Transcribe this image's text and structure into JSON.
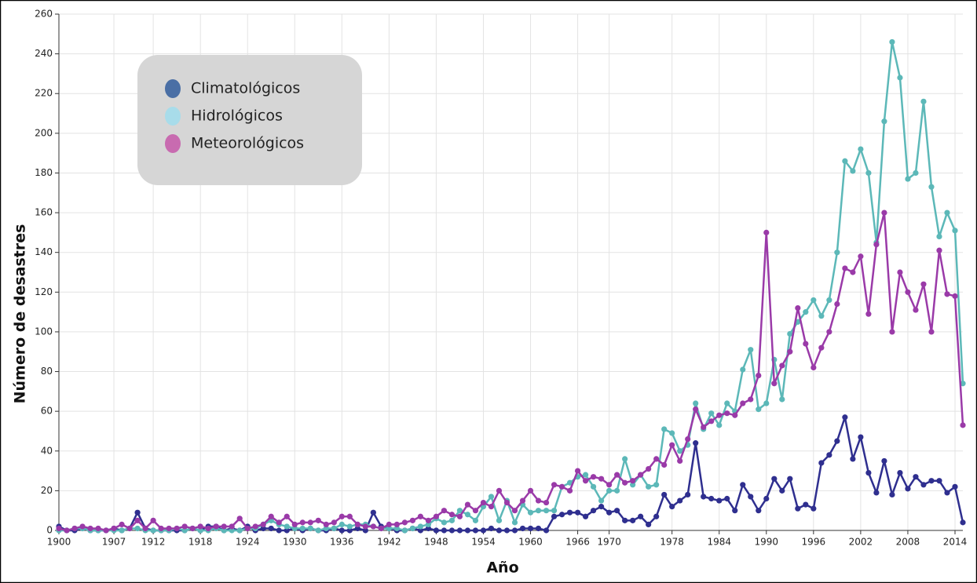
{
  "chart_data": {
    "type": "line",
    "xlabel": "Año",
    "ylabel": "Número de desastres",
    "x": [
      1900,
      1901,
      1902,
      1903,
      1904,
      1905,
      1906,
      1907,
      1908,
      1909,
      1910,
      1911,
      1912,
      1913,
      1914,
      1915,
      1916,
      1917,
      1918,
      1919,
      1920,
      1921,
      1922,
      1923,
      1924,
      1925,
      1926,
      1927,
      1928,
      1929,
      1930,
      1931,
      1932,
      1933,
      1934,
      1935,
      1936,
      1937,
      1938,
      1939,
      1940,
      1941,
      1942,
      1943,
      1944,
      1945,
      1946,
      1947,
      1948,
      1949,
      1950,
      1951,
      1952,
      1953,
      1954,
      1955,
      1956,
      1957,
      1958,
      1959,
      1960,
      1961,
      1962,
      1963,
      1964,
      1965,
      1966,
      1967,
      1968,
      1969,
      1970,
      1971,
      1972,
      1973,
      1974,
      1975,
      1976,
      1977,
      1978,
      1979,
      1980,
      1981,
      1982,
      1983,
      1984,
      1985,
      1986,
      1987,
      1988,
      1989,
      1990,
      1991,
      1992,
      1993,
      1994,
      1995,
      1996,
      1997,
      1998,
      1999,
      2000,
      2001,
      2002,
      2003,
      2004,
      2005,
      2006,
      2007,
      2008,
      2009,
      2010,
      2011,
      2012,
      2013,
      2014,
      2015
    ],
    "series": [
      {
        "name": "Climatológicos",
        "color": "#2f2f8f",
        "legend_color": "#4a6fa5",
        "values": [
          2,
          0,
          0,
          1,
          0,
          0,
          0,
          1,
          0,
          1,
          9,
          1,
          0,
          0,
          0,
          0,
          0,
          1,
          0,
          2,
          2,
          0,
          1,
          0,
          2,
          0,
          1,
          1,
          0,
          0,
          1,
          0,
          1,
          0,
          0,
          1,
          0,
          0,
          1,
          0,
          9,
          2,
          1,
          0,
          0,
          1,
          0,
          1,
          0,
          0,
          0,
          0,
          0,
          0,
          0,
          1,
          0,
          0,
          0,
          1,
          1,
          1,
          0,
          7,
          8,
          9,
          9,
          7,
          10,
          12,
          9,
          10,
          5,
          5,
          7,
          3,
          7,
          18,
          12,
          15,
          18,
          44,
          17,
          16,
          15,
          16,
          10,
          23,
          17,
          10,
          16,
          26,
          20,
          26,
          11,
          13,
          11,
          34,
          38,
          45,
          57,
          36,
          47,
          29,
          19,
          35,
          18,
          29,
          21,
          27,
          23,
          25,
          25,
          19,
          22,
          4
        ]
      },
      {
        "name": "Hidrológicos",
        "color": "#5cb8b8",
        "legend_color": "#a8dcea",
        "values": [
          0,
          0,
          1,
          1,
          0,
          0,
          0,
          0,
          0,
          1,
          1,
          0,
          0,
          0,
          0,
          1,
          0,
          1,
          0,
          0,
          1,
          0,
          0,
          0,
          1,
          1,
          3,
          5,
          3,
          2,
          1,
          1,
          1,
          0,
          1,
          1,
          3,
          2,
          3,
          3,
          2,
          1,
          1,
          1,
          0,
          1,
          2,
          3,
          6,
          4,
          5,
          10,
          8,
          5,
          12,
          17,
          5,
          15,
          4,
          13,
          9,
          10,
          10,
          10,
          22,
          24,
          27,
          28,
          22,
          15,
          20,
          20,
          36,
          23,
          28,
          22,
          23,
          51,
          49,
          40,
          43,
          64,
          51,
          59,
          53,
          64,
          60,
          81,
          91,
          61,
          64,
          86,
          66,
          99,
          105,
          110,
          116,
          108,
          116,
          140,
          186,
          181,
          192,
          180,
          145,
          206,
          246,
          228,
          177,
          180,
          216,
          173,
          148,
          160,
          151,
          74
        ]
      },
      {
        "name": "Meteorológicos",
        "color": "#9a3aa8",
        "legend_color": "#c86bb0",
        "values": [
          1,
          0,
          1,
          2,
          1,
          1,
          0,
          1,
          3,
          1,
          5,
          1,
          5,
          1,
          1,
          1,
          2,
          1,
          2,
          1,
          2,
          2,
          2,
          6,
          1,
          2,
          3,
          7,
          4,
          7,
          3,
          4,
          4,
          5,
          3,
          4,
          7,
          7,
          3,
          2,
          2,
          1,
          3,
          3,
          4,
          5,
          7,
          5,
          7,
          10,
          8,
          7,
          13,
          10,
          14,
          12,
          20,
          14,
          10,
          15,
          20,
          15,
          14,
          23,
          22,
          20,
          30,
          25,
          27,
          26,
          23,
          28,
          24,
          25,
          28,
          31,
          36,
          33,
          43,
          35,
          46,
          61,
          52,
          55,
          58,
          59,
          58,
          64,
          66,
          78,
          150,
          74,
          83,
          90,
          112,
          94,
          82,
          92,
          100,
          114,
          132,
          130,
          138,
          109,
          144,
          160,
          100,
          130,
          120,
          111,
          124,
          100,
          141,
          119,
          118,
          53
        ]
      }
    ],
    "xlim": [
      1900,
      2015
    ],
    "xticks": [
      1900,
      1907,
      1912,
      1918,
      1924,
      1930,
      1936,
      1942,
      1948,
      1954,
      1960,
      1966,
      1970,
      1978,
      1984,
      1990,
      1996,
      2002,
      2008,
      2014
    ],
    "ylim": [
      0,
      260
    ],
    "yticks": [
      0,
      20,
      40,
      60,
      80,
      100,
      120,
      140,
      160,
      180,
      200,
      220,
      240,
      260
    ],
    "grid": true,
    "legend": "upper left"
  }
}
